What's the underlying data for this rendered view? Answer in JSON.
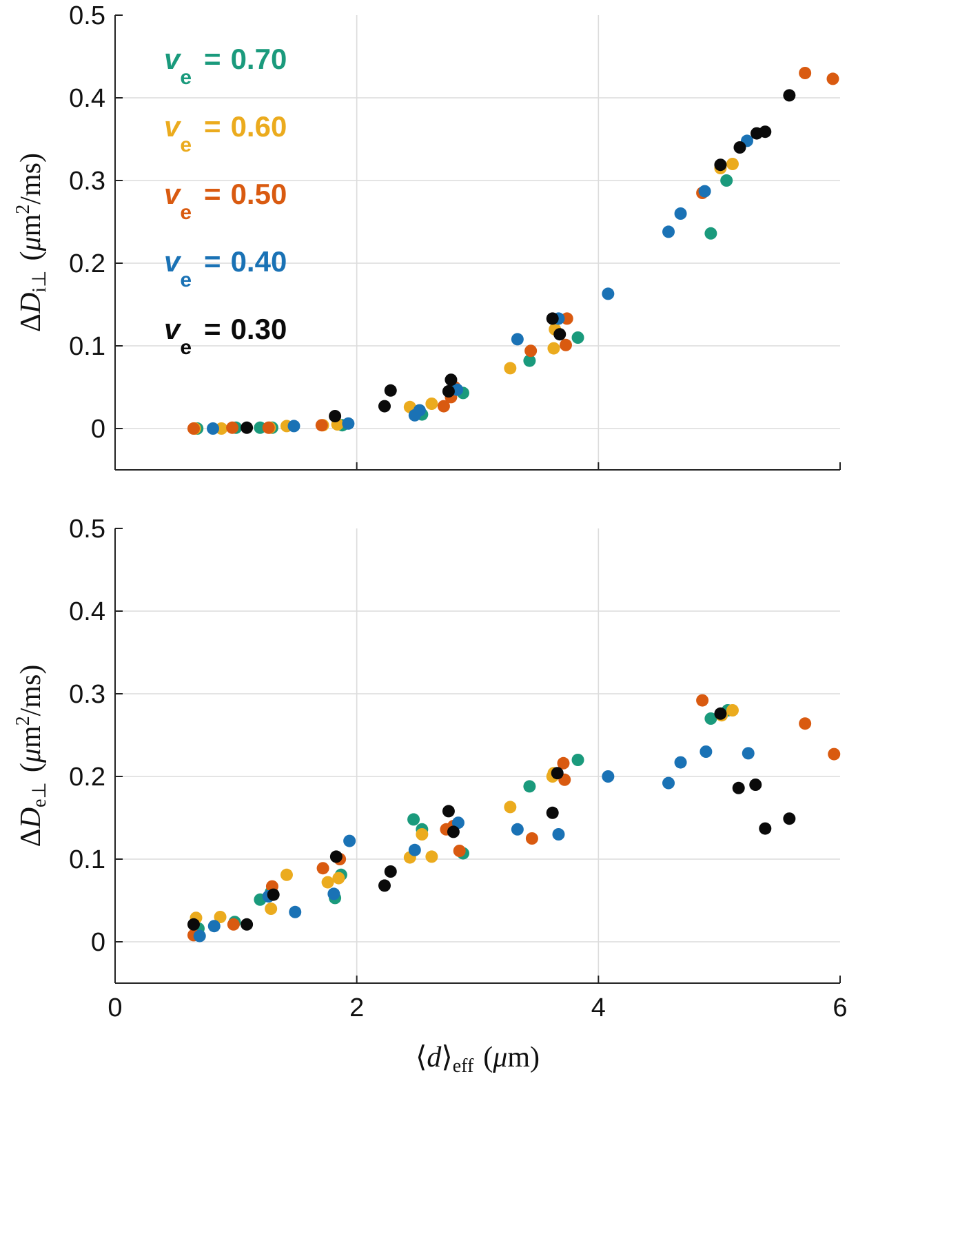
{
  "chart_data": [
    {
      "type": "scatter",
      "panel": "top",
      "title": "",
      "xlabel": "",
      "ylabel": {
        "prefix": "Δ",
        "var": "D",
        "sub": "i⊥",
        "units_open": "(",
        "mu": "μ",
        "m": "m",
        "sup": "2",
        "rest": "/ms)"
      },
      "xlim": [
        0,
        6
      ],
      "ylim": [
        -0.05,
        0.5
      ],
      "xticks": [
        0,
        2,
        4,
        6
      ],
      "yticks": [
        0,
        0.1,
        0.2,
        0.3,
        0.4,
        0.5
      ],
      "ytick_labels": [
        "0",
        "0.1",
        "0.2",
        "0.3",
        "0.4",
        "0.5"
      ],
      "grid": true,
      "legend_position": "top-left",
      "series": [
        {
          "name": "0.70",
          "color": "#1a9a7c",
          "points": [
            [
              0.68,
              0.0
            ],
            [
              1.0,
              0.001
            ],
            [
              1.2,
              0.001
            ],
            [
              1.3,
              0.001
            ],
            [
              1.88,
              0.004
            ],
            [
              2.54,
              0.017
            ],
            [
              2.88,
              0.043
            ],
            [
              3.43,
              0.082
            ],
            [
              3.83,
              0.11
            ],
            [
              4.93,
              0.236
            ],
            [
              5.06,
              0.3
            ]
          ]
        },
        {
          "name": "0.60",
          "color": "#ebab1e",
          "points": [
            [
              0.66,
              0.0
            ],
            [
              0.88,
              0.0
            ],
            [
              1.28,
              0.001
            ],
            [
              1.42,
              0.003
            ],
            [
              1.72,
              0.004
            ],
            [
              1.84,
              0.005
            ],
            [
              2.44,
              0.026
            ],
            [
              2.62,
              0.03
            ],
            [
              3.27,
              0.073
            ],
            [
              3.63,
              0.097
            ],
            [
              3.64,
              0.12
            ],
            [
              5.01,
              0.315
            ],
            [
              5.11,
              0.32
            ]
          ]
        },
        {
          "name": "0.50",
          "color": "#d95a10",
          "points": [
            [
              0.65,
              0.0
            ],
            [
              0.97,
              0.001
            ],
            [
              1.27,
              0.001
            ],
            [
              1.71,
              0.004
            ],
            [
              2.72,
              0.027
            ],
            [
              2.78,
              0.038
            ],
            [
              2.81,
              0.05
            ],
            [
              3.44,
              0.094
            ],
            [
              3.73,
              0.101
            ],
            [
              3.74,
              0.133
            ],
            [
              4.86,
              0.285
            ],
            [
              5.71,
              0.43
            ],
            [
              5.94,
              0.423
            ]
          ]
        },
        {
          "name": "0.40",
          "color": "#1a72b5",
          "points": [
            [
              0.81,
              0.0
            ],
            [
              1.48,
              0.003
            ],
            [
              1.93,
              0.006
            ],
            [
              2.48,
              0.016
            ],
            [
              2.52,
              0.022
            ],
            [
              2.83,
              0.047
            ],
            [
              3.33,
              0.108
            ],
            [
              3.67,
              0.133
            ],
            [
              4.08,
              0.163
            ],
            [
              4.58,
              0.238
            ],
            [
              4.68,
              0.26
            ],
            [
              4.88,
              0.287
            ],
            [
              5.23,
              0.348
            ]
          ]
        },
        {
          "name": "0.30",
          "color": "#0a0a0a",
          "points": [
            [
              1.09,
              0.001
            ],
            [
              1.82,
              0.015
            ],
            [
              2.23,
              0.027
            ],
            [
              2.28,
              0.046
            ],
            [
              2.76,
              0.045
            ],
            [
              2.78,
              0.059
            ],
            [
              3.62,
              0.133
            ],
            [
              3.68,
              0.114
            ],
            [
              5.01,
              0.319
            ],
            [
              5.17,
              0.34
            ],
            [
              5.31,
              0.357
            ],
            [
              5.38,
              0.359
            ],
            [
              5.58,
              0.403
            ]
          ]
        }
      ]
    },
    {
      "type": "scatter",
      "panel": "bottom",
      "title": "",
      "xlabel": {
        "lang": "⟨",
        "var": "d",
        "rang": "⟩",
        "sub": "eff",
        "units_open": "(",
        "mu": "μ",
        "rest": "m)"
      },
      "ylabel": {
        "prefix": "Δ",
        "var": "D",
        "sub": "e⊥",
        "units_open": "(",
        "mu": "μ",
        "m": "m",
        "sup": "2",
        "rest": "/ms)"
      },
      "xlim": [
        0,
        6
      ],
      "ylim": [
        -0.05,
        0.5
      ],
      "xticks": [
        0,
        2,
        4,
        6
      ],
      "xtick_labels": [
        "0",
        "2",
        "4",
        "6"
      ],
      "yticks": [
        0,
        0.1,
        0.2,
        0.3,
        0.4,
        0.5
      ],
      "ytick_labels": [
        "0",
        "0.1",
        "0.2",
        "0.3",
        "0.4",
        "0.5"
      ],
      "grid": true,
      "series": [
        {
          "name": "0.70",
          "color": "#1a9a7c",
          "points": [
            [
              0.69,
              0.016
            ],
            [
              0.99,
              0.024
            ],
            [
              1.2,
              0.051
            ],
            [
              1.29,
              0.06
            ],
            [
              1.82,
              0.053
            ],
            [
              1.87,
              0.081
            ],
            [
              2.47,
              0.148
            ],
            [
              2.54,
              0.136
            ],
            [
              2.88,
              0.107
            ],
            [
              3.43,
              0.188
            ],
            [
              3.83,
              0.22
            ],
            [
              4.93,
              0.27
            ],
            [
              5.07,
              0.28
            ]
          ]
        },
        {
          "name": "0.60",
          "color": "#ebab1e",
          "points": [
            [
              0.67,
              0.029
            ],
            [
              0.87,
              0.03
            ],
            [
              1.29,
              0.04
            ],
            [
              1.42,
              0.081
            ],
            [
              1.76,
              0.072
            ],
            [
              1.85,
              0.077
            ],
            [
              2.44,
              0.102
            ],
            [
              2.54,
              0.13
            ],
            [
              2.62,
              0.103
            ],
            [
              3.27,
              0.163
            ],
            [
              3.62,
              0.2
            ],
            [
              3.63,
              0.204
            ],
            [
              5.02,
              0.274
            ],
            [
              5.11,
              0.28
            ]
          ]
        },
        {
          "name": "0.50",
          "color": "#d95a10",
          "points": [
            [
              0.65,
              0.008
            ],
            [
              0.98,
              0.021
            ],
            [
              1.3,
              0.067
            ],
            [
              1.72,
              0.089
            ],
            [
              1.86,
              0.1
            ],
            [
              2.74,
              0.136
            ],
            [
              2.8,
              0.14
            ],
            [
              2.85,
              0.11
            ],
            [
              3.45,
              0.125
            ],
            [
              3.72,
              0.196
            ],
            [
              3.71,
              0.216
            ],
            [
              4.86,
              0.292
            ],
            [
              5.71,
              0.264
            ],
            [
              5.95,
              0.227
            ]
          ]
        },
        {
          "name": "0.40",
          "color": "#1a72b5",
          "points": [
            [
              0.7,
              0.007
            ],
            [
              0.82,
              0.019
            ],
            [
              1.27,
              0.055
            ],
            [
              1.49,
              0.036
            ],
            [
              1.81,
              0.058
            ],
            [
              1.94,
              0.122
            ],
            [
              2.48,
              0.111
            ],
            [
              2.84,
              0.144
            ],
            [
              3.33,
              0.136
            ],
            [
              3.67,
              0.13
            ],
            [
              4.08,
              0.2
            ],
            [
              4.58,
              0.192
            ],
            [
              4.68,
              0.217
            ],
            [
              4.89,
              0.23
            ],
            [
              5.24,
              0.228
            ]
          ]
        },
        {
          "name": "0.30",
          "color": "#0a0a0a",
          "points": [
            [
              0.65,
              0.021
            ],
            [
              1.09,
              0.021
            ],
            [
              1.31,
              0.057
            ],
            [
              1.83,
              0.103
            ],
            [
              2.23,
              0.068
            ],
            [
              2.28,
              0.085
            ],
            [
              2.76,
              0.158
            ],
            [
              2.8,
              0.133
            ],
            [
              3.62,
              0.156
            ],
            [
              3.66,
              0.204
            ],
            [
              5.01,
              0.276
            ],
            [
              5.16,
              0.186
            ],
            [
              5.3,
              0.19
            ],
            [
              5.38,
              0.137
            ],
            [
              5.58,
              0.149
            ]
          ]
        }
      ]
    }
  ],
  "legend": {
    "symbol": "v",
    "sub": "e",
    "eq": "=",
    "entries": [
      {
        "value": "0.70",
        "color": "#1a9a7c"
      },
      {
        "value": "0.60",
        "color": "#ebab1e"
      },
      {
        "value": "0.50",
        "color": "#d95a10"
      },
      {
        "value": "0.40",
        "color": "#1a72b5"
      },
      {
        "value": "0.30",
        "color": "#0a0a0a"
      }
    ]
  }
}
